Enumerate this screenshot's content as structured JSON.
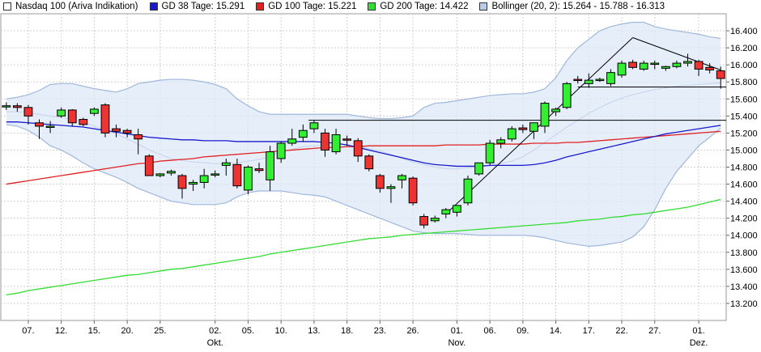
{
  "legend": [
    {
      "label": "Nasdaq 100 (Ariva Indikation)",
      "color": "#ffffff"
    },
    {
      "label": "GD 38 Tage: 15.291",
      "color": "#1a1acc"
    },
    {
      "label": "GD 100 Tage: 15.221",
      "color": "#e02020"
    },
    {
      "label": "GD 200 Tage: 14.422",
      "color": "#33dd33"
    },
    {
      "label": "Bollinger (20, 2): 15.264 - 15.788 - 16.313",
      "color": "#b8cde8"
    }
  ],
  "chart_data": {
    "type": "candlestick",
    "ylim": [
      13.0,
      16.6
    ],
    "y_ticks": [
      "16.400",
      "16.200",
      "16.000",
      "15.800",
      "15.600",
      "15.400",
      "15.200",
      "15.000",
      "14.800",
      "14.600",
      "14.400",
      "14.200",
      "14.000",
      "13.800",
      "13.600",
      "13.400",
      "13.200"
    ],
    "x_ticks": [
      {
        "label": "07.",
        "sub": "",
        "index": 2
      },
      {
        "label": "12.",
        "sub": "",
        "index": 5
      },
      {
        "label": "15.",
        "sub": "",
        "index": 8
      },
      {
        "label": "20.",
        "sub": "",
        "index": 11
      },
      {
        "label": "25.",
        "sub": "",
        "index": 14
      },
      {
        "label": "02.",
        "sub": "Okt.",
        "index": 19
      },
      {
        "label": "05.",
        "sub": "",
        "index": 22
      },
      {
        "label": "10.",
        "sub": "",
        "index": 25
      },
      {
        "label": "13.",
        "sub": "",
        "index": 28
      },
      {
        "label": "18.",
        "sub": "",
        "index": 31
      },
      {
        "label": "23.",
        "sub": "",
        "index": 34
      },
      {
        "label": "26.",
        "sub": "",
        "index": 37
      },
      {
        "label": "01.",
        "sub": "Nov.",
        "index": 41
      },
      {
        "label": "06.",
        "sub": "",
        "index": 44
      },
      {
        "label": "09.",
        "sub": "",
        "index": 47
      },
      {
        "label": "14.",
        "sub": "",
        "index": 50
      },
      {
        "label": "17.",
        "sub": "",
        "index": 53
      },
      {
        "label": "22.",
        "sub": "",
        "index": 56
      },
      {
        "label": "27.",
        "sub": "",
        "index": 59
      },
      {
        "label": "01.",
        "sub": "Dez.",
        "index": 63
      }
    ],
    "candles": [
      {
        "o": 15.52,
        "h": 15.56,
        "l": 15.47,
        "c": 15.52
      },
      {
        "o": 15.52,
        "h": 15.55,
        "l": 15.45,
        "c": 15.5
      },
      {
        "o": 15.5,
        "h": 15.53,
        "l": 15.3,
        "c": 15.4
      },
      {
        "o": 15.32,
        "h": 15.36,
        "l": 15.13,
        "c": 15.28
      },
      {
        "o": 15.28,
        "h": 15.34,
        "l": 15.2,
        "c": 15.28
      },
      {
        "o": 15.4,
        "h": 15.5,
        "l": 15.38,
        "c": 15.47
      },
      {
        "o": 15.47,
        "h": 15.48,
        "l": 15.28,
        "c": 15.32
      },
      {
        "o": 15.36,
        "h": 15.38,
        "l": 15.28,
        "c": 15.3
      },
      {
        "o": 15.43,
        "h": 15.5,
        "l": 15.4,
        "c": 15.48
      },
      {
        "o": 15.53,
        "h": 15.55,
        "l": 15.15,
        "c": 15.2
      },
      {
        "o": 15.25,
        "h": 15.3,
        "l": 15.15,
        "c": 15.22
      },
      {
        "o": 15.23,
        "h": 15.25,
        "l": 15.15,
        "c": 15.2
      },
      {
        "o": 15.18,
        "h": 15.25,
        "l": 14.95,
        "c": 15.13
      },
      {
        "o": 14.93,
        "h": 14.95,
        "l": 14.7,
        "c": 14.7
      },
      {
        "o": 14.7,
        "h": 14.73,
        "l": 14.68,
        "c": 14.72
      },
      {
        "o": 14.73,
        "h": 14.77,
        "l": 14.7,
        "c": 14.75
      },
      {
        "o": 14.7,
        "h": 14.72,
        "l": 14.43,
        "c": 14.55
      },
      {
        "o": 14.6,
        "h": 14.65,
        "l": 14.52,
        "c": 14.62
      },
      {
        "o": 14.62,
        "h": 14.78,
        "l": 14.55,
        "c": 14.7
      },
      {
        "o": 14.71,
        "h": 14.76,
        "l": 14.68,
        "c": 14.72
      },
      {
        "o": 14.82,
        "h": 14.9,
        "l": 14.7,
        "c": 14.85
      },
      {
        "o": 14.83,
        "h": 14.9,
        "l": 14.55,
        "c": 14.58
      },
      {
        "o": 14.53,
        "h": 14.82,
        "l": 14.48,
        "c": 14.8
      },
      {
        "o": 14.78,
        "h": 14.85,
        "l": 14.73,
        "c": 14.76
      },
      {
        "o": 14.65,
        "h": 15.05,
        "l": 14.52,
        "c": 14.98
      },
      {
        "o": 14.9,
        "h": 15.1,
        "l": 14.85,
        "c": 15.08
      },
      {
        "o": 15.08,
        "h": 15.25,
        "l": 15.05,
        "c": 15.13
      },
      {
        "o": 15.15,
        "h": 15.3,
        "l": 15.1,
        "c": 15.23
      },
      {
        "o": 15.25,
        "h": 15.35,
        "l": 15.2,
        "c": 15.32
      },
      {
        "o": 15.2,
        "h": 15.25,
        "l": 14.92,
        "c": 15.0
      },
      {
        "o": 14.98,
        "h": 15.25,
        "l": 14.95,
        "c": 15.18
      },
      {
        "o": 15.13,
        "h": 15.17,
        "l": 15.05,
        "c": 15.12
      },
      {
        "o": 15.11,
        "h": 15.14,
        "l": 14.86,
        "c": 14.93
      },
      {
        "o": 14.93,
        "h": 14.95,
        "l": 14.75,
        "c": 14.78
      },
      {
        "o": 14.7,
        "h": 14.72,
        "l": 14.5,
        "c": 14.55
      },
      {
        "o": 14.55,
        "h": 14.6,
        "l": 14.38,
        "c": 14.57
      },
      {
        "o": 14.65,
        "h": 14.72,
        "l": 14.55,
        "c": 14.7
      },
      {
        "o": 14.67,
        "h": 14.69,
        "l": 14.35,
        "c": 14.38
      },
      {
        "o": 14.22,
        "h": 14.25,
        "l": 14.08,
        "c": 14.12
      },
      {
        "o": 14.17,
        "h": 14.23,
        "l": 14.15,
        "c": 14.2
      },
      {
        "o": 14.25,
        "h": 14.32,
        "l": 14.2,
        "c": 14.3
      },
      {
        "o": 14.27,
        "h": 14.35,
        "l": 14.22,
        "c": 14.35
      },
      {
        "o": 14.38,
        "h": 14.7,
        "l": 14.35,
        "c": 14.66
      },
      {
        "o": 14.72,
        "h": 14.85,
        "l": 14.7,
        "c": 14.85
      },
      {
        "o": 14.85,
        "h": 15.12,
        "l": 14.82,
        "c": 15.08
      },
      {
        "o": 15.08,
        "h": 15.15,
        "l": 15.02,
        "c": 15.12
      },
      {
        "o": 15.13,
        "h": 15.28,
        "l": 15.1,
        "c": 15.25
      },
      {
        "o": 15.26,
        "h": 15.3,
        "l": 15.2,
        "c": 15.24
      },
      {
        "o": 15.22,
        "h": 15.3,
        "l": 15.13,
        "c": 15.32
      },
      {
        "o": 15.28,
        "h": 15.57,
        "l": 15.2,
        "c": 15.55
      },
      {
        "o": 15.45,
        "h": 15.5,
        "l": 15.4,
        "c": 15.48
      },
      {
        "o": 15.5,
        "h": 15.8,
        "l": 15.48,
        "c": 15.78
      },
      {
        "o": 15.83,
        "h": 15.87,
        "l": 15.78,
        "c": 15.82
      },
      {
        "o": 15.78,
        "h": 15.9,
        "l": 15.73,
        "c": 15.82
      },
      {
        "o": 15.82,
        "h": 15.85,
        "l": 15.8,
        "c": 15.83
      },
      {
        "o": 15.78,
        "h": 15.95,
        "l": 15.75,
        "c": 15.91
      },
      {
        "o": 15.88,
        "h": 16.05,
        "l": 15.85,
        "c": 16.02
      },
      {
        "o": 16.03,
        "h": 16.06,
        "l": 15.95,
        "c": 15.97
      },
      {
        "o": 15.95,
        "h": 16.05,
        "l": 15.93,
        "c": 16.02
      },
      {
        "o": 16.01,
        "h": 16.05,
        "l": 15.95,
        "c": 16.02
      },
      {
        "o": 15.96,
        "h": 15.99,
        "l": 15.93,
        "c": 15.98
      },
      {
        "o": 15.98,
        "h": 16.05,
        "l": 15.96,
        "c": 16.02
      },
      {
        "o": 16.02,
        "h": 16.13,
        "l": 15.98,
        "c": 16.04
      },
      {
        "o": 16.04,
        "h": 16.06,
        "l": 15.87,
        "c": 15.95
      },
      {
        "o": 15.97,
        "h": 16.02,
        "l": 15.9,
        "c": 15.94
      },
      {
        "o": 15.93,
        "h": 15.98,
        "l": 15.72,
        "c": 15.84
      }
    ],
    "gd38": [
      15.33,
      15.33,
      15.32,
      15.31,
      15.3,
      15.29,
      15.28,
      15.27,
      15.25,
      15.23,
      15.21,
      15.19,
      15.17,
      15.15,
      15.14,
      15.13,
      15.12,
      15.12,
      15.11,
      15.11,
      15.11,
      15.1,
      15.1,
      15.1,
      15.1,
      15.1,
      15.1,
      15.1,
      15.1,
      15.09,
      15.08,
      15.06,
      15.03,
      15.0,
      14.97,
      14.94,
      14.91,
      14.88,
      14.85,
      14.83,
      14.82,
      14.81,
      14.81,
      14.81,
      14.82,
      14.82,
      14.82,
      14.82,
      14.83,
      14.85,
      14.88,
      14.92,
      14.95,
      14.98,
      15.01,
      15.04,
      15.07,
      15.1,
      15.13,
      15.16,
      15.19,
      15.21,
      15.23,
      15.25,
      15.27,
      15.29
    ],
    "gd100": [
      14.6,
      14.62,
      14.64,
      14.66,
      14.68,
      14.7,
      14.72,
      14.74,
      14.76,
      14.78,
      14.8,
      14.82,
      14.84,
      14.85,
      14.87,
      14.88,
      14.89,
      14.9,
      14.92,
      14.93,
      14.94,
      14.95,
      14.96,
      14.97,
      14.98,
      14.99,
      15.0,
      15.01,
      15.02,
      15.03,
      15.03,
      15.04,
      15.04,
      15.05,
      15.05,
      15.05,
      15.05,
      15.05,
      15.05,
      15.05,
      15.06,
      15.06,
      15.06,
      15.06,
      15.07,
      15.07,
      15.07,
      15.07,
      15.08,
      15.08,
      15.08,
      15.09,
      15.09,
      15.1,
      15.11,
      15.12,
      15.13,
      15.14,
      15.15,
      15.16,
      15.17,
      15.18,
      15.19,
      15.2,
      15.21,
      15.22
    ],
    "gd200": [
      13.3,
      13.32,
      13.35,
      13.37,
      13.39,
      13.41,
      13.43,
      13.45,
      13.47,
      13.49,
      13.51,
      13.53,
      13.54,
      13.56,
      13.58,
      13.6,
      13.61,
      13.63,
      13.65,
      13.67,
      13.69,
      13.71,
      13.73,
      13.75,
      13.78,
      13.8,
      13.82,
      13.84,
      13.86,
      13.88,
      13.9,
      13.92,
      13.94,
      13.96,
      13.97,
      13.98,
      14.0,
      14.01,
      14.02,
      14.03,
      14.04,
      14.05,
      14.06,
      14.07,
      14.08,
      14.09,
      14.1,
      14.11,
      14.12,
      14.13,
      14.14,
      14.15,
      14.17,
      14.18,
      14.19,
      14.21,
      14.22,
      14.24,
      14.25,
      14.27,
      14.29,
      14.31,
      14.33,
      14.36,
      14.39,
      14.42
    ],
    "boll_upper": [
      15.6,
      15.62,
      15.65,
      15.7,
      15.77,
      15.78,
      15.78,
      15.75,
      15.72,
      15.7,
      15.68,
      15.72,
      15.78,
      15.8,
      15.82,
      15.83,
      15.83,
      15.82,
      15.8,
      15.77,
      15.72,
      15.6,
      15.52,
      15.45,
      15.42,
      15.42,
      15.42,
      15.42,
      15.42,
      15.42,
      15.42,
      15.42,
      15.4,
      15.38,
      15.37,
      15.37,
      15.38,
      15.4,
      15.5,
      15.55,
      15.56,
      15.58,
      15.6,
      15.62,
      15.64,
      15.65,
      15.66,
      15.66,
      15.68,
      15.72,
      15.85,
      16.05,
      16.2,
      16.3,
      16.4,
      16.45,
      16.48,
      16.5,
      16.5,
      16.45,
      16.42,
      16.4,
      16.38,
      16.36,
      16.33,
      16.31
    ],
    "boll_middle": [
      15.45,
      15.45,
      15.44,
      15.42,
      15.4,
      15.38,
      15.36,
      15.33,
      15.28,
      15.24,
      15.19,
      15.13,
      15.07,
      15.0,
      14.95,
      14.9,
      14.88,
      14.86,
      14.85,
      14.84,
      14.84,
      14.85,
      14.87,
      14.89,
      14.93,
      14.98,
      15.01,
      15.04,
      15.05,
      15.06,
      15.06,
      15.05,
      15.04,
      15.02,
      14.99,
      14.95,
      14.9,
      14.86,
      14.83,
      14.8,
      14.78,
      14.78,
      14.79,
      14.8,
      14.82,
      14.84,
      14.87,
      14.92,
      15.0,
      15.09,
      15.18,
      15.27,
      15.35,
      15.43,
      15.5,
      15.56,
      15.61,
      15.65,
      15.68,
      15.71,
      15.73,
      15.75,
      15.76,
      15.77,
      15.78,
      15.79
    ],
    "boll_lower": [
      15.3,
      15.28,
      15.23,
      15.15,
      15.05,
      15.0,
      14.93,
      14.85,
      14.78,
      14.73,
      14.68,
      14.62,
      14.55,
      14.5,
      14.45,
      14.4,
      14.38,
      14.36,
      14.36,
      14.36,
      14.38,
      14.45,
      14.5,
      14.52,
      14.52,
      14.52,
      14.5,
      14.48,
      14.47,
      14.45,
      14.4,
      14.35,
      14.3,
      14.25,
      14.2,
      14.15,
      14.1,
      14.05,
      14.03,
      14.02,
      14.02,
      14.02,
      14.01,
      14.0,
      14.0,
      14.0,
      14.0,
      14.0,
      13.99,
      13.97,
      13.94,
      13.91,
      13.89,
      13.87,
      13.88,
      13.9,
      13.92,
      13.98,
      14.1,
      14.3,
      14.55,
      14.75,
      14.9,
      15.05,
      15.15,
      15.26
    ],
    "trendlines": [
      {
        "from": [
          40,
          14.25
        ],
        "to": [
          57,
          16.32
        ]
      },
      {
        "from": [
          57,
          16.32
        ],
        "to": [
          65,
          15.94
        ]
      },
      {
        "from": [
          27.5,
          15.35
        ],
        "to": [
          65.5,
          15.35
        ]
      },
      {
        "from": [
          52,
          15.74
        ],
        "to": [
          65.5,
          15.74
        ]
      }
    ]
  }
}
